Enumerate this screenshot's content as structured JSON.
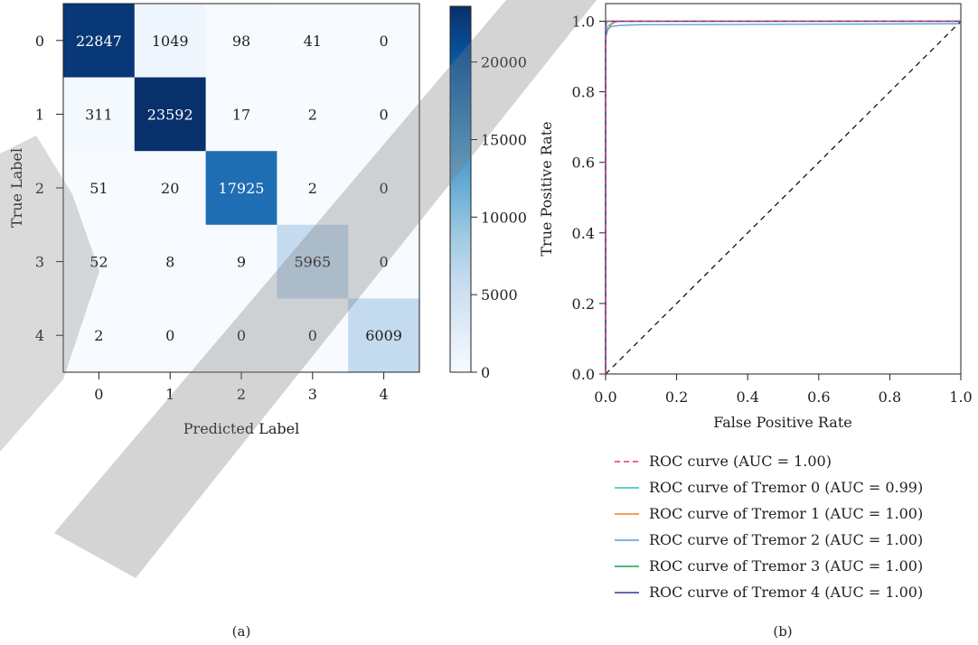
{
  "chart_data": [
    {
      "type": "heatmap",
      "panel_label": "(a)",
      "xlabel": "Predicted Label",
      "ylabel": "True Label",
      "x_ticks": [
        "0",
        "1",
        "2",
        "3",
        "4"
      ],
      "y_ticks": [
        "0",
        "1",
        "2",
        "3",
        "4"
      ],
      "matrix": [
        [
          22847,
          1049,
          98,
          41,
          0
        ],
        [
          311,
          23592,
          17,
          2,
          0
        ],
        [
          51,
          20,
          17925,
          2,
          0
        ],
        [
          52,
          8,
          9,
          5965,
          0
        ],
        [
          2,
          0,
          0,
          0,
          6009
        ]
      ],
      "colormap": "Blues",
      "colorbar": {
        "range": [
          0,
          23592
        ],
        "ticks": [
          0,
          5000,
          10000,
          15000,
          20000
        ],
        "tick_labels": [
          "0",
          "5000",
          "10000",
          "15000",
          "20000"
        ]
      }
    },
    {
      "type": "line",
      "panel_label": "(b)",
      "xlabel": "False Positive Rate",
      "ylabel": "True Positive Rate",
      "xlim": [
        0.0,
        1.0
      ],
      "ylim": [
        0.0,
        1.05
      ],
      "x_ticks": [
        0.0,
        0.2,
        0.4,
        0.6,
        0.8,
        1.0
      ],
      "x_tick_labels": [
        "0.0",
        "0.2",
        "0.4",
        "0.6",
        "0.8",
        "1.0"
      ],
      "y_ticks": [
        0.0,
        0.2,
        0.4,
        0.6,
        0.8,
        1.0
      ],
      "y_tick_labels": [
        "0.0",
        "0.2",
        "0.4",
        "0.6",
        "0.8",
        "1.0"
      ],
      "legend_placement": "below",
      "chance_line": {
        "x": [
          0,
          1
        ],
        "y": [
          0,
          1
        ],
        "color": "#000000",
        "dash": "dashed"
      },
      "series": [
        {
          "name": "ROC curve (AUC = 1.00)",
          "color": "#e8307a",
          "dash": "dashed",
          "x": [
            0.0,
            0.0,
            0.002,
            1.0
          ],
          "y": [
            0.0,
            0.97,
            1.0,
            1.0
          ]
        },
        {
          "name": "ROC curve of Tremor 0 (AUC = 0.99)",
          "color": "#2ec4b6",
          "dash": "solid",
          "x": [
            0.0,
            0.0,
            0.005,
            0.02,
            0.04,
            1.0
          ],
          "y": [
            0.0,
            0.96,
            0.985,
            0.996,
            1.0,
            1.0
          ]
        },
        {
          "name": "ROC curve of Tremor 1 (AUC = 1.00)",
          "color": "#f07f2a",
          "dash": "solid",
          "x": [
            0.0,
            0.0,
            0.006,
            0.015,
            0.03,
            1.0
          ],
          "y": [
            0.0,
            0.955,
            0.975,
            0.99,
            1.0,
            1.0
          ]
        },
        {
          "name": "ROC curve of Tremor 2 (AUC = 1.00)",
          "color": "#5a9bd5",
          "dash": "solid",
          "x": [
            0.0,
            0.0,
            0.005,
            0.015,
            0.04,
            0.1,
            1.0
          ],
          "y": [
            0.0,
            0.95,
            0.975,
            0.985,
            0.988,
            0.99,
            0.993
          ]
        },
        {
          "name": "ROC curve of Tremor 3 (AUC = 1.00)",
          "color": "#1a9e50",
          "dash": "solid",
          "x": [
            0.0,
            0.0,
            0.003,
            1.0
          ],
          "y": [
            0.0,
            0.98,
            1.0,
            1.0
          ]
        },
        {
          "name": "ROC curve of Tremor 4 (AUC = 1.00)",
          "color": "#2e3a99",
          "dash": "solid",
          "x": [
            0.0,
            0.0,
            1.0
          ],
          "y": [
            0.0,
            1.0,
            1.0
          ]
        }
      ]
    }
  ]
}
